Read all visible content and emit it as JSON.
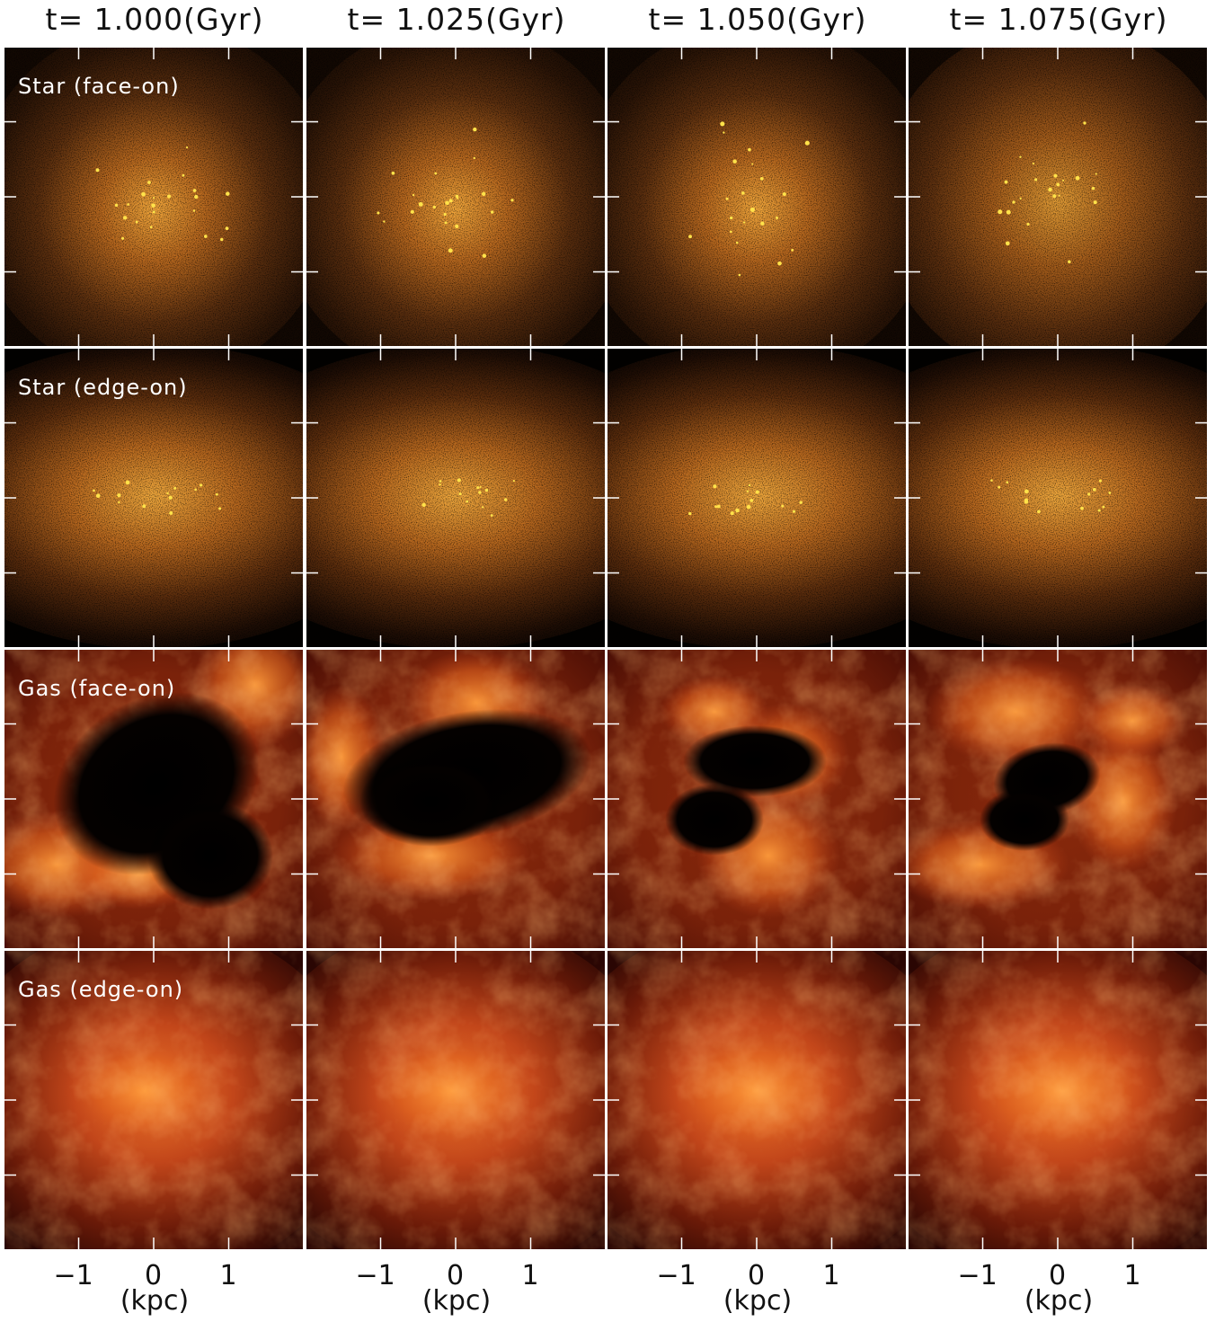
{
  "columns": [
    {
      "title": "t= 1.000(Gyr)"
    },
    {
      "title": "t= 1.025(Gyr)"
    },
    {
      "title": "t= 1.050(Gyr)"
    },
    {
      "title": "t= 1.075(Gyr)"
    }
  ],
  "rows": [
    {
      "label": "Star (face-on)",
      "kind": "star-face"
    },
    {
      "label": "Star (edge-on)",
      "kind": "star-edge"
    },
    {
      "label": "Gas (face-on)",
      "kind": "gas-face"
    },
    {
      "label": "Gas (edge-on)",
      "kind": "gas-edge"
    }
  ],
  "x_axis": {
    "ticks": [
      {
        "value": -1,
        "label": "−1"
      },
      {
        "value": 0,
        "label": "0"
      },
      {
        "value": 1,
        "label": "1"
      }
    ],
    "range": [
      -2,
      2
    ],
    "unit_label": "(kpc)"
  },
  "colors": {
    "star_core": "#f6b840",
    "star_halo": "#6a3a12",
    "gas_bright": "#ff9a3a",
    "gas_mid": "#c2431a",
    "gas_dark": "#3a0a04",
    "frame": "#ffffff",
    "background": "#000000"
  }
}
